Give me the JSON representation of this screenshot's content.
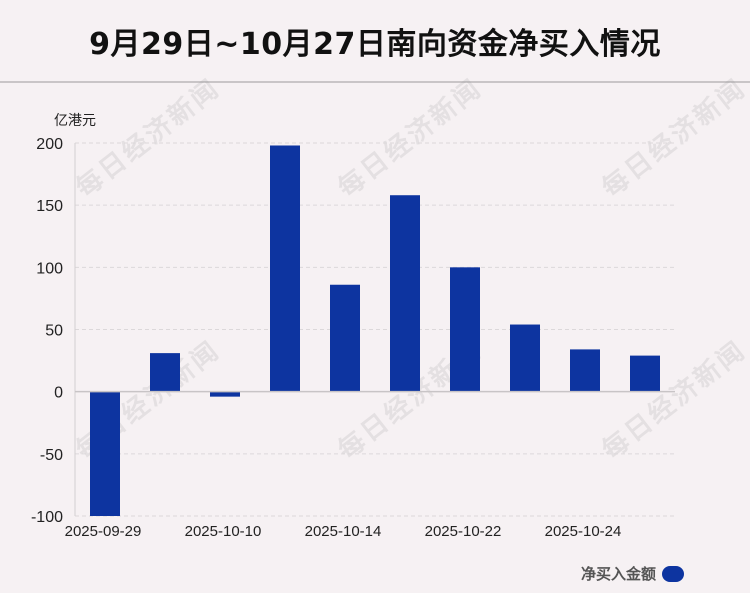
{
  "title": "9月29日~10月27日南向资金净买入情况",
  "watermark": "每日经济新闻",
  "chart_data": {
    "type": "bar",
    "title": "9月29日~10月27日南向资金净买入情况",
    "ylabel": "亿港元",
    "xlabel": "",
    "ylim": [
      -100,
      200
    ],
    "yticks": [
      200,
      150,
      100,
      50,
      0,
      -50,
      -100
    ],
    "grid": true,
    "legend_position": "bottom-right",
    "color": "#0d34a0",
    "xtick_labels": [
      "2025-09-29",
      "2025-10-10",
      "2025-10-14",
      "2025-10-22",
      "2025-10-24"
    ],
    "series": [
      {
        "name": "净买入金额",
        "values": [
          -100,
          31,
          -4,
          198,
          86,
          158,
          100,
          54,
          34,
          29
        ]
      }
    ]
  }
}
